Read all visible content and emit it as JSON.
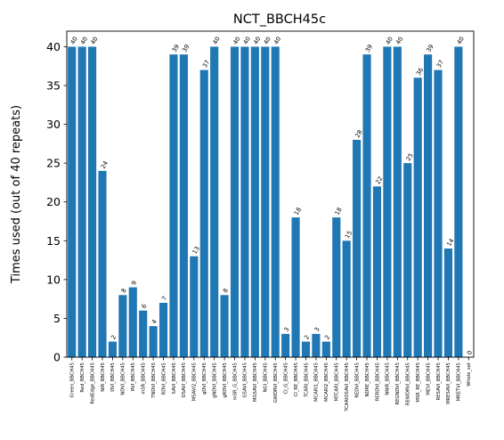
{
  "chart_data": {
    "type": "bar",
    "title": "NCT_BBCH45c",
    "xlabel": "",
    "ylabel": "Times used (out of 40 repeats)",
    "ylim": [
      0,
      42
    ],
    "yticks": [
      0,
      5,
      10,
      15,
      20,
      25,
      30,
      35,
      40
    ],
    "grid": false,
    "color": "#1f77b4",
    "categories": [
      "Green_BBCH45",
      "Red_BBCH45",
      "RedEdge_BBCH45",
      "NIR_BBCH45",
      "DVI_BBCH45",
      "NDVI_BBCH45",
      "RVI_BBCH45",
      "mSR_BBCH45",
      "TNDVI_BBCH45",
      "RDVI_BBCH45",
      "SAVI_BBCH45",
      "OSAVI_BBCH45",
      "MSAVI2_BBCH45",
      "gDVI_BBCH45",
      "gNDVI_BBCH45",
      "gRDVI_BBCH45",
      "mSR_G_BBCH45",
      "GSAVI_BBCH45",
      "MGSAVI_BBCH45",
      "NGI_BBCH45",
      "GWDRVI_BBCH45",
      "CI_G_BBCH45",
      "CI_RE_BBCH45",
      "TCARI_BBCH45",
      "MCARI1_BBCH45",
      "MCARI2_BBCH45",
      "MTCARI_BBCH45",
      "TCARIOSAVI_BBCH45",
      "REDVI_BBCH45",
      "NDRE_BBCH45",
      "RERDVI_BBCH45",
      "NNIR_BBCH45",
      "REGNDVI_BBCH45",
      "REWDRVI_BBCH45",
      "MSR_RE_BBCH45",
      "MEVI_BBCH45",
      "RESAVI_BBCH45",
      "MRESAVI_BBCH45",
      "MRETVI_BBCH45",
      "Whole_set"
    ],
    "values": [
      40,
      40,
      40,
      24,
      2,
      8,
      9,
      6,
      4,
      7,
      39,
      39,
      13,
      37,
      40,
      8,
      40,
      40,
      40,
      40,
      40,
      3,
      18,
      2,
      3,
      2,
      18,
      15,
      28,
      39,
      22,
      40,
      40,
      25,
      36,
      39,
      37,
      14,
      40,
      0
    ]
  }
}
